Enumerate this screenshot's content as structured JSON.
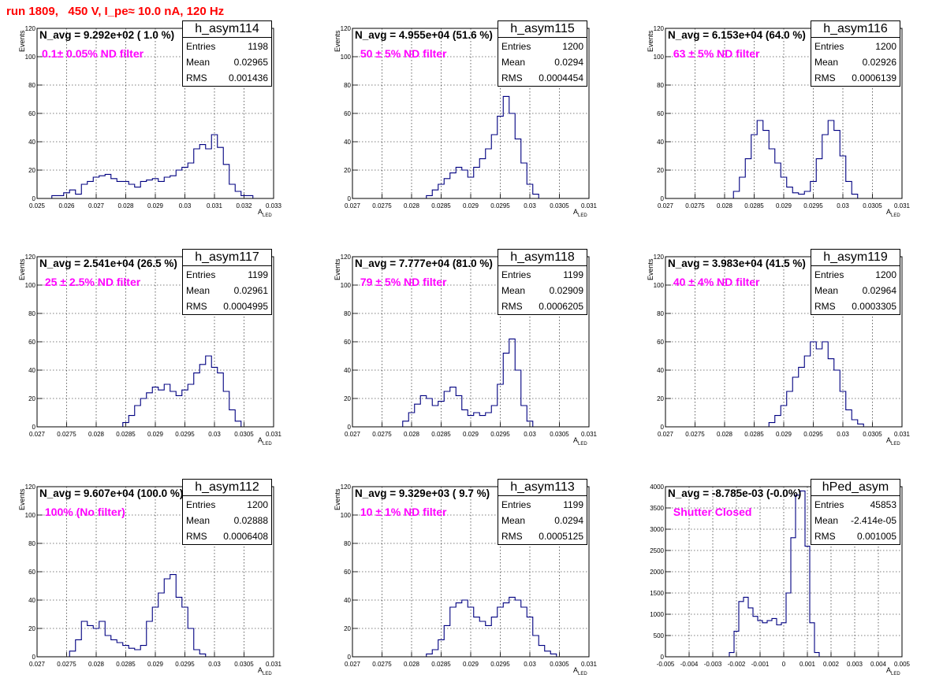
{
  "title": "run 1809,   450 V, I_pe≈ 10.0 nA, 120 Hz",
  "colors": {
    "title": "#ff0000",
    "filter_text": "#ff00ff",
    "histogram": "#000080",
    "grid": "#000000"
  },
  "axis_labels": {
    "y": "Events",
    "x_main": "A",
    "x_sub": "LED"
  },
  "stat_keys": {
    "entries": "Entries",
    "mean": "Mean",
    "rms": "RMS"
  },
  "panels": [
    {
      "hist_name": "h_asym114",
      "navg": "N_avg = 9.292e+02 ( 1.0 %)",
      "filter": "0.1± 0.05% ND filter",
      "entries": "1198",
      "mean": "0.02965",
      "rms": "0.001436"
    },
    {
      "hist_name": "h_asym115",
      "navg": "N_avg = 4.955e+04 (51.6 %)",
      "filter": " 50 ± 5% ND filter",
      "entries": "1200",
      "mean": "0.0294",
      "rms": "0.0004454"
    },
    {
      "hist_name": "h_asym116",
      "navg": "N_avg = 6.153e+04 (64.0 %)",
      "filter": " 63 ± 5% ND filter",
      "entries": "1200",
      "mean": "0.02926",
      "rms": "0.0006139"
    },
    {
      "hist_name": "h_asym117",
      "navg": "N_avg = 2.541e+04 (26.5 %)",
      "filter": " 25 ± 2.5% ND filter",
      "entries": "1199",
      "mean": "0.02961",
      "rms": "0.0004995"
    },
    {
      "hist_name": "h_asym118",
      "navg": "N_avg = 7.777e+04 (81.0 %)",
      "filter": " 79 ± 5% ND filter",
      "entries": "1199",
      "mean": "0.02909",
      "rms": "0.0006205"
    },
    {
      "hist_name": "h_asym119",
      "navg": "N_avg = 3.983e+04 (41.5 %)",
      "filter": " 40 ± 4% ND filter",
      "entries": "1200",
      "mean": "0.02964",
      "rms": "0.0003305"
    },
    {
      "hist_name": "h_asym112",
      "navg": "N_avg = 9.607e+04 (100.0 %)",
      "filter": " 100% (No filter)",
      "entries": "1200",
      "mean": "0.02888",
      "rms": "0.0006408"
    },
    {
      "hist_name": "h_asym113",
      "navg": "N_avg = 9.329e+03 ( 9.7 %)",
      "filter": " 10 ± 1% ND filter",
      "entries": "1199",
      "mean": "0.0294",
      "rms": "0.0005125"
    },
    {
      "hist_name": "hPed_asym",
      "navg": "N_avg = -8.785e-03 (-0.0%)",
      "filter": " Shutter Closed",
      "entries": "45853",
      "mean": "-2.414e-05",
      "rms": "0.001005"
    }
  ],
  "chart_data": [
    {
      "type": "bar",
      "title": "h_asym114",
      "xlabel": "A_LED",
      "ylabel": "Events",
      "xlim": [
        0.025,
        0.033
      ],
      "ylim": [
        0,
        120
      ],
      "xticks": [
        "0.025",
        "0.026",
        "0.027",
        "0.028",
        "0.029",
        "0.03",
        "0.031",
        "0.032",
        "0.033"
      ],
      "yticks": [
        "0",
        "20",
        "40",
        "60",
        "80",
        "100",
        "120"
      ],
      "x": [
        0.0256,
        0.0258,
        0.026,
        0.0262,
        0.0264,
        0.0266,
        0.0268,
        0.027,
        0.0272,
        0.0274,
        0.0276,
        0.0278,
        0.028,
        0.0282,
        0.0284,
        0.0286,
        0.0288,
        0.029,
        0.0292,
        0.0294,
        0.0296,
        0.0298,
        0.03,
        0.0302,
        0.0304,
        0.0306,
        0.0308,
        0.031,
        0.0312,
        0.0314,
        0.0316,
        0.0318,
        0.032,
        0.0322
      ],
      "values": [
        2,
        2,
        4,
        6,
        3,
        10,
        12,
        15,
        16,
        17,
        14,
        12,
        12,
        10,
        8,
        12,
        13,
        14,
        12,
        15,
        16,
        20,
        22,
        25,
        35,
        38,
        35,
        45,
        36,
        24,
        10,
        5,
        2,
        2
      ]
    },
    {
      "type": "bar",
      "title": "h_asym115",
      "xlabel": "A_LED",
      "ylabel": "Events",
      "xlim": [
        0.027,
        0.031
      ],
      "ylim": [
        0,
        120
      ],
      "xticks": [
        "0.027",
        "0.0275",
        "0.028",
        "0.0285",
        "0.029",
        "0.0295",
        "0.03",
        "0.0305",
        "0.031"
      ],
      "yticks": [
        "0",
        "20",
        "40",
        "60",
        "80",
        "100",
        "120"
      ],
      "x": [
        0.0283,
        0.0284,
        0.0285,
        0.0286,
        0.0287,
        0.0288,
        0.0289,
        0.029,
        0.0291,
        0.0292,
        0.0293,
        0.0294,
        0.0295,
        0.0296,
        0.0297,
        0.0298,
        0.0299,
        0.03,
        0.0301
      ],
      "values": [
        2,
        6,
        10,
        14,
        18,
        22,
        20,
        15,
        22,
        28,
        35,
        45,
        58,
        72,
        60,
        42,
        25,
        10,
        3
      ]
    },
    {
      "type": "bar",
      "title": "h_asym116",
      "xlabel": "A_LED",
      "ylabel": "Events",
      "xlim": [
        0.027,
        0.031
      ],
      "ylim": [
        0,
        120
      ],
      "xticks": [
        "0.027",
        "0.0275",
        "0.028",
        "0.0285",
        "0.029",
        "0.0295",
        "0.03",
        "0.0305",
        "0.031"
      ],
      "yticks": [
        "0",
        "20",
        "40",
        "60",
        "80",
        "100",
        "120"
      ],
      "x": [
        0.0282,
        0.0283,
        0.0284,
        0.0285,
        0.0286,
        0.0287,
        0.0288,
        0.0289,
        0.029,
        0.0291,
        0.0292,
        0.0293,
        0.0294,
        0.0295,
        0.0296,
        0.0297,
        0.0298,
        0.0299,
        0.03,
        0.0301,
        0.0302
      ],
      "values": [
        5,
        15,
        28,
        45,
        55,
        48,
        35,
        25,
        15,
        8,
        4,
        3,
        5,
        12,
        28,
        45,
        55,
        48,
        30,
        12,
        3
      ]
    },
    {
      "type": "bar",
      "title": "h_asym117",
      "xlabel": "A_LED",
      "ylabel": "Events",
      "xlim": [
        0.027,
        0.031
      ],
      "ylim": [
        0,
        120
      ],
      "xticks": [
        "0.027",
        "0.0275",
        "0.028",
        "0.0285",
        "0.029",
        "0.0295",
        "0.03",
        "0.0305",
        "0.031"
      ],
      "yticks": [
        "0",
        "20",
        "40",
        "60",
        "80",
        "100",
        "120"
      ],
      "x": [
        0.0285,
        0.0286,
        0.0287,
        0.0288,
        0.0289,
        0.029,
        0.0291,
        0.0292,
        0.0293,
        0.0294,
        0.0295,
        0.0296,
        0.0297,
        0.0298,
        0.0299,
        0.03,
        0.0301,
        0.0302,
        0.0303,
        0.0304
      ],
      "values": [
        3,
        8,
        15,
        20,
        24,
        28,
        26,
        30,
        25,
        22,
        26,
        30,
        38,
        44,
        50,
        42,
        38,
        25,
        12,
        4
      ]
    },
    {
      "type": "bar",
      "title": "h_asym118",
      "xlabel": "A_LED",
      "ylabel": "Events",
      "xlim": [
        0.027,
        0.031
      ],
      "ylim": [
        0,
        120
      ],
      "xticks": [
        "0.027",
        "0.0275",
        "0.028",
        "0.0285",
        "0.029",
        "0.0295",
        "0.03",
        "0.0305",
        "0.031"
      ],
      "yticks": [
        "0",
        "20",
        "40",
        "60",
        "80",
        "100",
        "120"
      ],
      "x": [
        0.0279,
        0.028,
        0.0281,
        0.0282,
        0.0283,
        0.0284,
        0.0285,
        0.0286,
        0.0287,
        0.0288,
        0.0289,
        0.029,
        0.0291,
        0.0292,
        0.0293,
        0.0294,
        0.0295,
        0.0296,
        0.0297,
        0.0298,
        0.0299,
        0.03
      ],
      "values": [
        4,
        10,
        16,
        22,
        20,
        15,
        18,
        25,
        28,
        22,
        12,
        8,
        10,
        8,
        10,
        15,
        30,
        52,
        62,
        40,
        15,
        4
      ]
    },
    {
      "type": "bar",
      "title": "h_asym119",
      "xlabel": "A_LED",
      "ylabel": "Events",
      "xlim": [
        0.027,
        0.031
      ],
      "ylim": [
        0,
        120
      ],
      "xticks": [
        "0.027",
        "0.0275",
        "0.028",
        "0.0285",
        "0.029",
        "0.0295",
        "0.03",
        "0.0305",
        "0.031"
      ],
      "yticks": [
        "0",
        "20",
        "40",
        "60",
        "80",
        "100",
        "120"
      ],
      "x": [
        0.0288,
        0.0289,
        0.029,
        0.0291,
        0.0292,
        0.0293,
        0.0294,
        0.0295,
        0.0296,
        0.0297,
        0.0298,
        0.0299,
        0.03,
        0.0301,
        0.0302,
        0.0303
      ],
      "values": [
        3,
        8,
        15,
        25,
        35,
        42,
        50,
        60,
        55,
        60,
        48,
        40,
        25,
        12,
        5,
        2
      ]
    },
    {
      "type": "bar",
      "title": "h_asym112",
      "xlabel": "A_LED",
      "ylabel": "Events",
      "xlim": [
        0.027,
        0.031
      ],
      "ylim": [
        0,
        120
      ],
      "xticks": [
        "0.027",
        "0.0275",
        "0.028",
        "0.0285",
        "0.029",
        "0.0295",
        "0.03",
        "0.0305",
        "0.031"
      ],
      "yticks": [
        "0",
        "20",
        "40",
        "60",
        "80",
        "100",
        "120"
      ],
      "x": [
        0.0276,
        0.0277,
        0.0278,
        0.0279,
        0.028,
        0.0281,
        0.0282,
        0.0283,
        0.0284,
        0.0285,
        0.0286,
        0.0287,
        0.0288,
        0.0289,
        0.029,
        0.0291,
        0.0292,
        0.0293,
        0.0294,
        0.0295,
        0.0296,
        0.0297,
        0.0298
      ],
      "values": [
        4,
        12,
        25,
        22,
        20,
        25,
        15,
        12,
        10,
        8,
        6,
        5,
        8,
        25,
        35,
        45,
        55,
        58,
        42,
        35,
        20,
        5,
        2
      ]
    },
    {
      "type": "bar",
      "title": "h_asym113",
      "xlabel": "A_LED",
      "ylabel": "Events",
      "xlim": [
        0.027,
        0.031
      ],
      "ylim": [
        0,
        120
      ],
      "xticks": [
        "0.027",
        "0.0275",
        "0.028",
        "0.0285",
        "0.029",
        "0.0295",
        "0.03",
        "0.0305",
        "0.031"
      ],
      "yticks": [
        "0",
        "20",
        "40",
        "60",
        "80",
        "100",
        "120"
      ],
      "x": [
        0.0283,
        0.0284,
        0.0285,
        0.0286,
        0.0287,
        0.0288,
        0.0289,
        0.029,
        0.0291,
        0.0292,
        0.0293,
        0.0294,
        0.0295,
        0.0296,
        0.0297,
        0.0298,
        0.0299,
        0.03,
        0.0301,
        0.0302,
        0.0303,
        0.0304
      ],
      "values": [
        2,
        5,
        12,
        22,
        35,
        38,
        40,
        35,
        28,
        25,
        22,
        28,
        35,
        38,
        42,
        40,
        35,
        28,
        15,
        8,
        4,
        2
      ]
    },
    {
      "type": "bar",
      "title": "hPed_asym",
      "xlabel": "A_LED",
      "ylabel": "",
      "xlim": [
        -0.005,
        0.005
      ],
      "ylim": [
        0,
        4000
      ],
      "xticks": [
        "-0.005",
        "-0.004",
        "-0.003",
        "-0.002",
        "-0.001",
        "0",
        "0.001",
        "0.002",
        "0.003",
        "0.004",
        "0.005"
      ],
      "yticks": [
        "0",
        "500",
        "1000",
        "1500",
        "2000",
        "2500",
        "3000",
        "3500",
        "4000"
      ],
      "x": [
        -0.0022,
        -0.002,
        -0.0018,
        -0.0016,
        -0.0014,
        -0.0012,
        -0.001,
        -0.0008,
        -0.0006,
        -0.0004,
        -0.0002,
        0,
        0.0002,
        0.0004,
        0.0006,
        0.0008,
        0.001,
        0.0012,
        0.0014
      ],
      "values": [
        100,
        600,
        1300,
        1400,
        1150,
        950,
        850,
        800,
        850,
        900,
        750,
        800,
        1500,
        2800,
        3800,
        3900,
        2600,
        800,
        100
      ]
    }
  ]
}
